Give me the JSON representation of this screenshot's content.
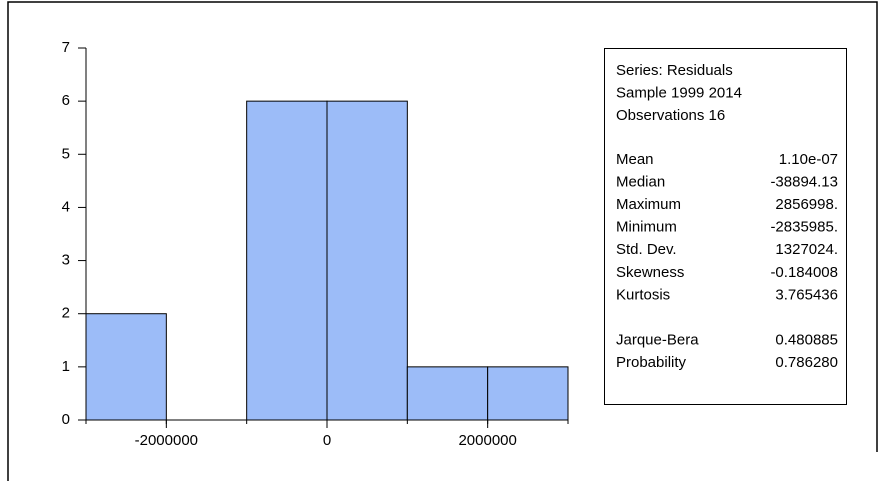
{
  "chart_data": {
    "type": "histogram",
    "color": "#9cbcf8",
    "bins": [
      -3000000,
      -2000000,
      -1000000,
      0,
      1000000,
      2000000,
      3000000
    ],
    "values": [
      2,
      0,
      6,
      6,
      1,
      1
    ],
    "xlim": [
      -3000000,
      3000000
    ],
    "xticks": [
      -2000000,
      0,
      2000000
    ],
    "ylim": [
      0,
      7
    ],
    "yticks": [
      0,
      1,
      2,
      3,
      4,
      5,
      6,
      7
    ],
    "stats": {
      "header": [
        "Series: Residuals",
        "Sample 1999 2014",
        "Observations 16"
      ],
      "groups": [
        [
          [
            "Mean",
            "1.10e-07"
          ],
          [
            "Median",
            "-38894.13"
          ],
          [
            "Maximum",
            "2856998."
          ],
          [
            "Minimum",
            "-2835985."
          ],
          [
            "Std. Dev.",
            "1327024."
          ],
          [
            "Skewness",
            "-0.184008"
          ],
          [
            "Kurtosis",
            "3.765436"
          ]
        ],
        [
          [
            "Jarque-Bera",
            "0.480885"
          ],
          [
            "Probability",
            "0.786280"
          ]
        ]
      ]
    }
  }
}
